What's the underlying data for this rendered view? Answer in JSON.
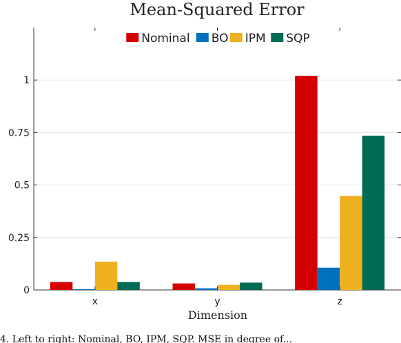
{
  "chart_data": {
    "type": "bar",
    "title": "Mean-Squared Error",
    "xlabel": "Dimension",
    "ylabel": "",
    "categories": [
      "x",
      "y",
      "z"
    ],
    "series": [
      {
        "name": "Nominal",
        "color": "#d50000",
        "values": [
          0.038,
          0.031,
          1.02
        ]
      },
      {
        "name": "BO",
        "color": "#0072bd",
        "values": [
          0.004,
          0.008,
          0.106
        ]
      },
      {
        "name": "IPM",
        "color": "#edb120",
        "values": [
          0.135,
          0.024,
          0.448
        ]
      },
      {
        "name": "SQP",
        "color": "#006b55",
        "values": [
          0.038,
          0.035,
          0.735
        ]
      }
    ],
    "ylim": [
      0,
      1.25
    ],
    "yticks": [
      0,
      0.25,
      0.5,
      0.75,
      1
    ],
    "ytick_labels": [
      "0",
      "0.25",
      "0.5",
      "0.75",
      "1"
    ],
    "grid": "y-major",
    "legend_position": "top-center"
  },
  "caption": "4. Left to right: Nominal, BO, IPM, SQP. MSE in degree of..."
}
